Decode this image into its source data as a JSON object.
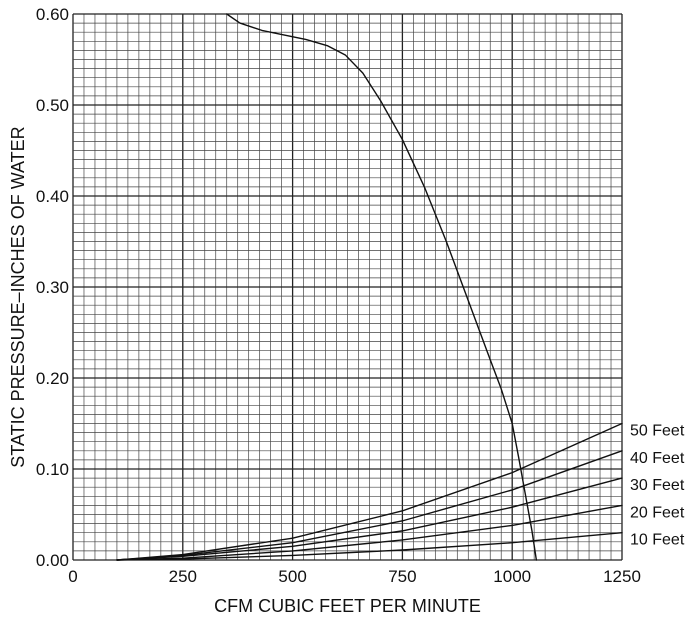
{
  "chart_data": {
    "type": "line",
    "title": "",
    "xlabel": "CFM CUBIC FEET PER MINUTE",
    "ylabel": "STATIC PRESSURE–INCHES OF WATER",
    "xlim": [
      0,
      1250
    ],
    "ylim": [
      0,
      0.6
    ],
    "x_ticks": [
      0,
      250,
      500,
      750,
      1000,
      1250
    ],
    "x_tick_labels": [
      "0",
      "250",
      "500",
      "750",
      "1000",
      "1250"
    ],
    "y_ticks": [
      0,
      0.1,
      0.2,
      0.3,
      0.4,
      0.5,
      0.6
    ],
    "y_tick_labels": [
      "0.00",
      "0.10",
      "0.20",
      "0.30",
      "0.40",
      "0.50",
      "0.60"
    ],
    "grid": true,
    "minor_grid": {
      "x_step": 25,
      "y_step": 0.01
    },
    "series": [
      {
        "x": [
          350,
          380,
          430,
          480,
          530,
          580,
          620,
          660,
          700,
          750,
          800,
          850,
          900,
          950,
          975,
          1000,
          1015,
          1030,
          1045,
          1055
        ],
        "y": [
          0.6,
          0.59,
          0.582,
          0.577,
          0.572,
          0.565,
          0.555,
          0.535,
          0.505,
          0.462,
          0.41,
          0.35,
          0.285,
          0.22,
          0.188,
          0.15,
          0.112,
          0.072,
          0.032,
          0.0
        ]
      },
      {
        "name": "50 Feet",
        "x": [
          100,
          250,
          500,
          750,
          1000,
          1250
        ],
        "y": [
          0,
          0.006,
          0.024,
          0.054,
          0.096,
          0.15
        ]
      },
      {
        "name": "40 Feet",
        "x": [
          100,
          250,
          500,
          750,
          1000,
          1250
        ],
        "y": [
          0,
          0.005,
          0.019,
          0.043,
          0.077,
          0.12
        ]
      },
      {
        "name": "30 Feet",
        "x": [
          100,
          250,
          500,
          750,
          1000,
          1250
        ],
        "y": [
          0,
          0.004,
          0.015,
          0.032,
          0.058,
          0.09
        ]
      },
      {
        "name": "20 Feet",
        "x": [
          100,
          250,
          500,
          750,
          1000,
          1250
        ],
        "y": [
          0,
          0.002,
          0.01,
          0.022,
          0.038,
          0.06
        ]
      },
      {
        "name": "10 Feet",
        "x": [
          100,
          250,
          500,
          750,
          1000,
          1250
        ],
        "y": [
          0,
          0.001,
          0.005,
          0.011,
          0.019,
          0.03
        ]
      }
    ]
  }
}
